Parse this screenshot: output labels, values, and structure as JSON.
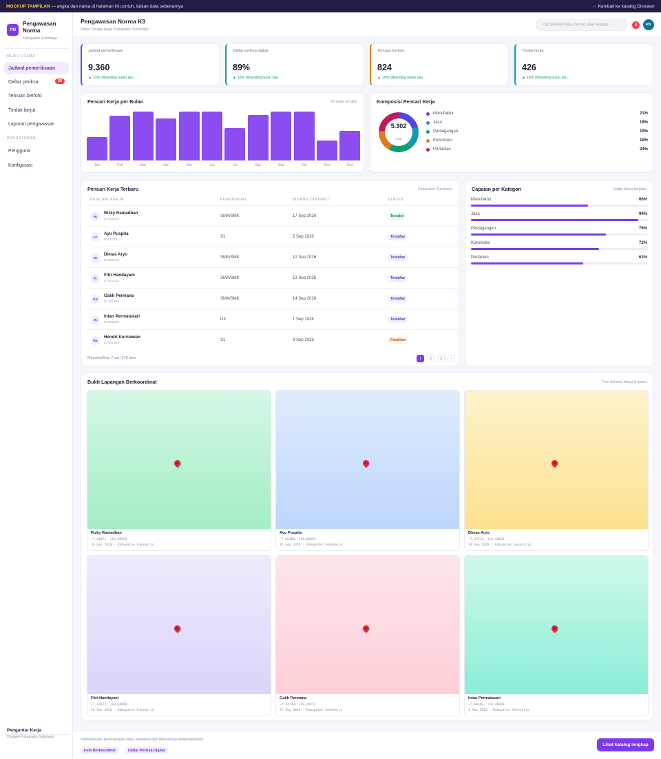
{
  "banner": {
    "tag": "MOCKUP TAMPILAN",
    "text": " — angka dan nama di halaman ini contoh, bukan data sebenarnya",
    "link": "← Kembali ke katalog Disnaker"
  },
  "sidebar": {
    "logo": "PN",
    "brand": "Pengawasan Norma",
    "brand_sub": "Kabupaten Sukoharjo",
    "group_main": "MENU UTAMA",
    "items_main": [
      {
        "label": "Jadwal pemeriksaan",
        "active": true
      },
      {
        "label": "Daftar periksa",
        "badge": "39"
      },
      {
        "label": "Temuan berfoto"
      },
      {
        "label": "Tindak lanjut"
      },
      {
        "label": "Laporan pengawasan"
      }
    ],
    "group_settings": "PENGATURAN",
    "items_settings": [
      {
        "label": "Pengguna"
      },
      {
        "label": "Konfigurasi"
      }
    ],
    "footer_title": "Pengantar Kerja",
    "footer_sub": "Disnaker Kabupaten Sukoharjo"
  },
  "header": {
    "title": "Pengawasan Norma K3",
    "subtitle": "Dinas Tenaga Kerja Kabupaten Sukoharjo",
    "search_placeholder": "Cari pencari kerja, nomor, atau tanggal...",
    "notif_count": "3",
    "avatar": "PK"
  },
  "stats": [
    {
      "label": "Jadwal pemeriksaan",
      "value": "9.360",
      "trend": "▲ 13% dibanding bulan lalu",
      "accent": "#5b4fe0"
    },
    {
      "label": "Daftar periksa digital",
      "value": "89%",
      "trend": "▲ 15% dibanding bulan lalu",
      "accent": "#10a37f"
    },
    {
      "label": "Temuan berfoto",
      "value": "824",
      "trend": "▲ 15% dibanding bulan lalu",
      "accent": "#e07b1a"
    },
    {
      "label": "Tindak lanjut",
      "value": "426",
      "trend": "▲ 18% dibanding bulan lalu",
      "accent": "#0e9bb0"
    }
  ],
  "bar_chart": {
    "title": "Pencari Kerja per Bulan",
    "note": "12 bulan terakhir",
    "color": "#8b4cf0"
  },
  "donut": {
    "title": "Komposisi Pencari Kerja",
    "total": "5.302",
    "total_label": "total"
  },
  "chart_data": [
    {
      "type": "bar",
      "title": "Pencari Kerja per Bulan",
      "categories": [
        "Jan",
        "Feb",
        "Mar",
        "Apr",
        "Mei",
        "Jun",
        "Jul",
        "Agu",
        "Sep",
        "Okt",
        "Nov",
        "Des"
      ],
      "values": [
        36,
        68,
        75,
        64,
        75,
        75,
        49,
        70,
        75,
        75,
        31,
        45
      ],
      "ylim": [
        0,
        80
      ],
      "grid": false
    },
    {
      "type": "pie",
      "title": "Komposisi Pencari Kerja",
      "categories": [
        "Manufaktur",
        "Jasa",
        "Perdagangan",
        "Konstruksi",
        "Pertanian"
      ],
      "values": [
        21,
        18,
        19,
        18,
        24
      ],
      "value_labels": [
        "21%",
        "18%",
        "19%",
        "18%",
        "24%"
      ],
      "colors": [
        "#4f46e5",
        "#0e9bb0",
        "#0f9d6f",
        "#e07b1a",
        "#be185d"
      ]
    }
  ],
  "table": {
    "title": "Pencari Kerja Terbaru",
    "note": "Kabupaten Sukoharjo",
    "columns": [
      "PENCARI KERJA",
      "PENDIDIKAN",
      "BIDANG DIMINATI",
      "STATUS"
    ],
    "rows": [
      {
        "initials": "RI",
        "name": "Rizky Ramadhan",
        "id": "ID 001234",
        "edu": "SMA/SMK",
        "date": "17 Sep 2026",
        "status": "Tersalur",
        "tone": "green"
      },
      {
        "initials": "AY",
        "name": "Ayu Puspita",
        "id": "ID 001241",
        "edu": "S1",
        "date": "5 Sep 2026",
        "status": "Terdaftar",
        "tone": "blue"
      },
      {
        "initials": "DI",
        "name": "Dimas Aryo",
        "id": "ID 001278",
        "edu": "SMA/SMK",
        "date": "12 Sep 2026",
        "status": "Terdaftar",
        "tone": "blue"
      },
      {
        "initials": "FI",
        "name": "Fitri Handayani",
        "id": "ID 001315",
        "edu": "SMA/SMK",
        "date": "13 Sep 2026",
        "status": "Terdaftar",
        "tone": "blue"
      },
      {
        "initials": "GA",
        "name": "Galih Permana",
        "id": "ID 001352",
        "edu": "SMA/SMK",
        "date": "14 Sep 2026",
        "status": "Terdaftar",
        "tone": "blue"
      },
      {
        "initials": "IN",
        "name": "Intan Permatasari",
        "id": "ID 001389",
        "edu": "D3",
        "date": "1 Sep 2026",
        "status": "Terdaftar",
        "tone": "blue"
      },
      {
        "initials": "HE",
        "name": "Hendri Kurniawan",
        "id": "ID 001426",
        "edu": "S1",
        "date": "9 Sep 2026",
        "status": "Pelatihan",
        "tone": "orange"
      }
    ],
    "showing": "Menampilkan 7 dari 676 data",
    "pages": [
      "1",
      "2",
      "3",
      "›"
    ]
  },
  "capaian": {
    "title": "Capaian per Kategori",
    "note": "Target tahun berjalan",
    "items": [
      {
        "label": "Manufaktur",
        "pct": "66%",
        "value": 66
      },
      {
        "label": "Jasa",
        "pct": "94%",
        "value": 94
      },
      {
        "label": "Perdagangan",
        "pct": "76%",
        "value": 76
      },
      {
        "label": "Konstruksi",
        "pct": "72%",
        "value": 72
      },
      {
        "label": "Pertanian",
        "pct": "63%",
        "value": 63
      }
    ]
  },
  "photos": {
    "title": "Bukti Lapangan Berkoordinat",
    "note": "Foto terkunci lokasi & waktu",
    "items": [
      {
        "name": "Rizky Ramadhan",
        "coord": "−7,44671, 110,89654",
        "meta": "20 Sep 2026 · Kabupaten Sukoharjo",
        "from": "#d4f7e6",
        "to": "#a3edc5"
      },
      {
        "name": "Ayu Puspita",
        "coord": "−7,86383, 110,69093",
        "meta": "17 Sep 2026 · Kabupaten Sukoharjo",
        "from": "#e0ebfc",
        "to": "#bcd6fb"
      },
      {
        "name": "Dimas Aryo",
        "coord": "−7,27214, 110,46033",
        "meta": "14 Sep 2026 · Kabupaten Sukoharjo",
        "from": "#fdf3cc",
        "to": "#fce18e"
      },
      {
        "name": "Fitri Handayani",
        "coord": "−7,19123, 110,04880",
        "meta": "10 Sep 2026 · Kabupaten Sukoharjo",
        "from": "#efebfd",
        "to": "#dcd3fa"
      },
      {
        "name": "Galih Permana",
        "coord": "−7,24710, 110,24252",
        "meta": "27 Sep 2026 · Kabupaten Sukoharjo",
        "from": "#fde6ea",
        "to": "#fccfd6"
      },
      {
        "name": "Intan Permatasari",
        "coord": "−7,68446, 110,48039",
        "meta": "4 Sep 2026 · Kabupaten Sukoharjo",
        "from": "#cff8ec",
        "to": "#8aeed6"
      }
    ]
  },
  "footer": {
    "text": "Pemeriksaan keselamatan kerja terjadwal dan temuannya tertindaklanjuti.",
    "tags": [
      "Foto Berkoordinat",
      "Daftar Periksa Digital"
    ],
    "button": "Lihat katalog lengkap"
  }
}
